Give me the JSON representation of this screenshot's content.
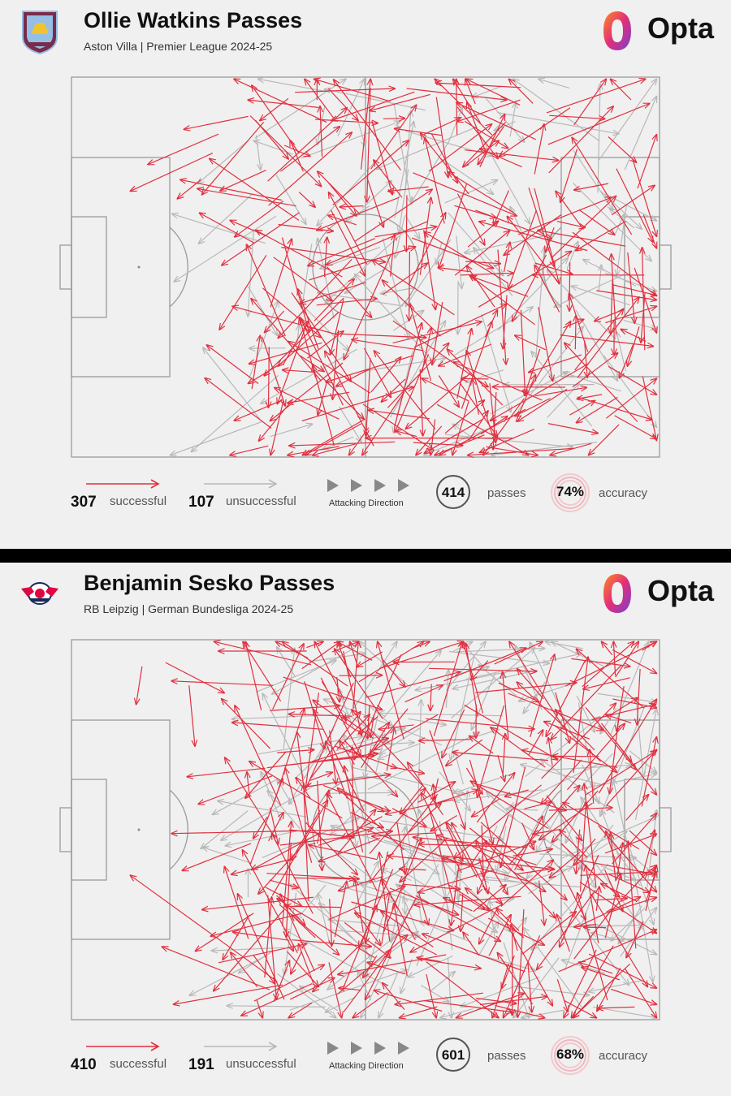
{
  "colors": {
    "successful": "#e0303f",
    "unsuccessful": "#b8b8b8",
    "pitch_line": "#9a9a9a",
    "opta_gradient": [
      "#ff8a1e",
      "#e0307a",
      "#7a3fcf"
    ]
  },
  "opta_brand": "Opta",
  "panels": [
    {
      "title": "Ollie Watkins Passes",
      "subtitle": "Aston Villa | Premier League 2024-25",
      "crest_icon": "aston-villa-crest-icon",
      "successful_count": "307",
      "successful_label": "successful",
      "unsuccessful_count": "107",
      "unsuccessful_label": "unsuccessful",
      "direction_label": "Attacking Direction",
      "passes_value": "414",
      "passes_label": "passes",
      "accuracy_value": "74%",
      "accuracy_label": "accuracy"
    },
    {
      "title": "Benjamin Sesko Passes",
      "subtitle": "RB Leipzig | German Bundesliga 2024-25",
      "crest_icon": "rb-leipzig-crest-icon",
      "successful_count": "410",
      "successful_label": "successful",
      "unsuccessful_count": "191",
      "unsuccessful_label": "unsuccessful",
      "direction_label": "Attacking Direction",
      "passes_value": "601",
      "passes_label": "passes",
      "accuracy_value": "68%",
      "accuracy_label": "accuracy"
    }
  ],
  "chart_data": [
    {
      "type": "pass-map",
      "title": "Ollie Watkins Passes",
      "attacking_direction": "left-to-right",
      "pitch_units": "0-100 length × 0-100 width",
      "successful": 307,
      "unsuccessful": 107,
      "total": 414,
      "accuracy_pct": 74,
      "passes_sample": [
        {
          "x1": 25,
          "y1": 15,
          "x2": 13,
          "y2": 23,
          "ok": true
        },
        {
          "x1": 24,
          "y1": 20,
          "x2": 10,
          "y2": 30,
          "ok": true
        },
        {
          "x1": 22,
          "y1": 27,
          "x2": 18,
          "y2": 32,
          "ok": true
        },
        {
          "x1": 38,
          "y1": 4,
          "x2": 55,
          "y2": 3,
          "ok": true
        },
        {
          "x1": 57,
          "y1": 3,
          "x2": 74,
          "y2": 6,
          "ok": true
        },
        {
          "x1": 42,
          "y1": 8,
          "x2": 30,
          "y2": 6,
          "ok": true
        },
        {
          "x1": 31,
          "y1": 40,
          "x2": 30,
          "y2": 63,
          "ok": false
        },
        {
          "x1": 30,
          "y1": 55,
          "x2": 35,
          "y2": 68,
          "ok": false
        },
        {
          "x1": 40,
          "y1": 65,
          "x2": 35,
          "y2": 86,
          "ok": true
        },
        {
          "x1": 55,
          "y1": 96,
          "x2": 37,
          "y2": 97,
          "ok": true
        },
        {
          "x1": 75,
          "y1": 95,
          "x2": 50,
          "y2": 95,
          "ok": true
        },
        {
          "x1": 70,
          "y1": 90,
          "x2": 60,
          "y2": 99,
          "ok": true
        },
        {
          "x1": 80,
          "y1": 85,
          "x2": 65,
          "y2": 75,
          "ok": true
        },
        {
          "x1": 95,
          "y1": 60,
          "x2": 85,
          "y2": 55,
          "ok": false
        },
        {
          "x1": 96,
          "y1": 55,
          "x2": 87,
          "y2": 48,
          "ok": false
        },
        {
          "x1": 90,
          "y1": 30,
          "x2": 97,
          "y2": 40,
          "ok": false
        }
      ]
    },
    {
      "type": "pass-map",
      "title": "Benjamin Sesko Passes",
      "attacking_direction": "left-to-right",
      "pitch_units": "0-100 length × 0-100 width",
      "successful": 410,
      "unsuccessful": 191,
      "total": 601,
      "accuracy_pct": 68,
      "passes_sample": [
        {
          "x1": 12,
          "y1": 7,
          "x2": 11,
          "y2": 17,
          "ok": true
        },
        {
          "x1": 20,
          "y1": 12,
          "x2": 21,
          "y2": 28,
          "ok": true
        },
        {
          "x1": 16,
          "y1": 6,
          "x2": 26,
          "y2": 14,
          "ok": true
        },
        {
          "x1": 48,
          "y1": 50,
          "x2": 17,
          "y2": 51,
          "ok": true
        },
        {
          "x1": 35,
          "y1": 90,
          "x2": 10,
          "y2": 62,
          "ok": true
        },
        {
          "x1": 40,
          "y1": 3,
          "x2": 25,
          "y2": 3,
          "ok": true
        },
        {
          "x1": 85,
          "y1": 5,
          "x2": 95,
          "y2": 7,
          "ok": true
        },
        {
          "x1": 95,
          "y1": 10,
          "x2": 87,
          "y2": 13,
          "ok": true
        },
        {
          "x1": 97,
          "y1": 70,
          "x2": 93,
          "y2": 80,
          "ok": false
        },
        {
          "x1": 95,
          "y1": 55,
          "x2": 99,
          "y2": 75,
          "ok": false
        },
        {
          "x1": 60,
          "y1": 95,
          "x2": 75,
          "y2": 98,
          "ok": true
        },
        {
          "x1": 70,
          "y1": 93,
          "x2": 55,
          "y2": 96,
          "ok": true
        },
        {
          "x1": 37,
          "y1": 50,
          "x2": 48,
          "y2": 52,
          "ok": true
        },
        {
          "x1": 30,
          "y1": 45,
          "x2": 22,
          "y2": 55,
          "ok": false
        },
        {
          "x1": 92,
          "y1": 30,
          "x2": 86,
          "y2": 40,
          "ok": false
        },
        {
          "x1": 25,
          "y1": 85,
          "x2": 40,
          "y2": 80,
          "ok": true
        }
      ]
    }
  ]
}
